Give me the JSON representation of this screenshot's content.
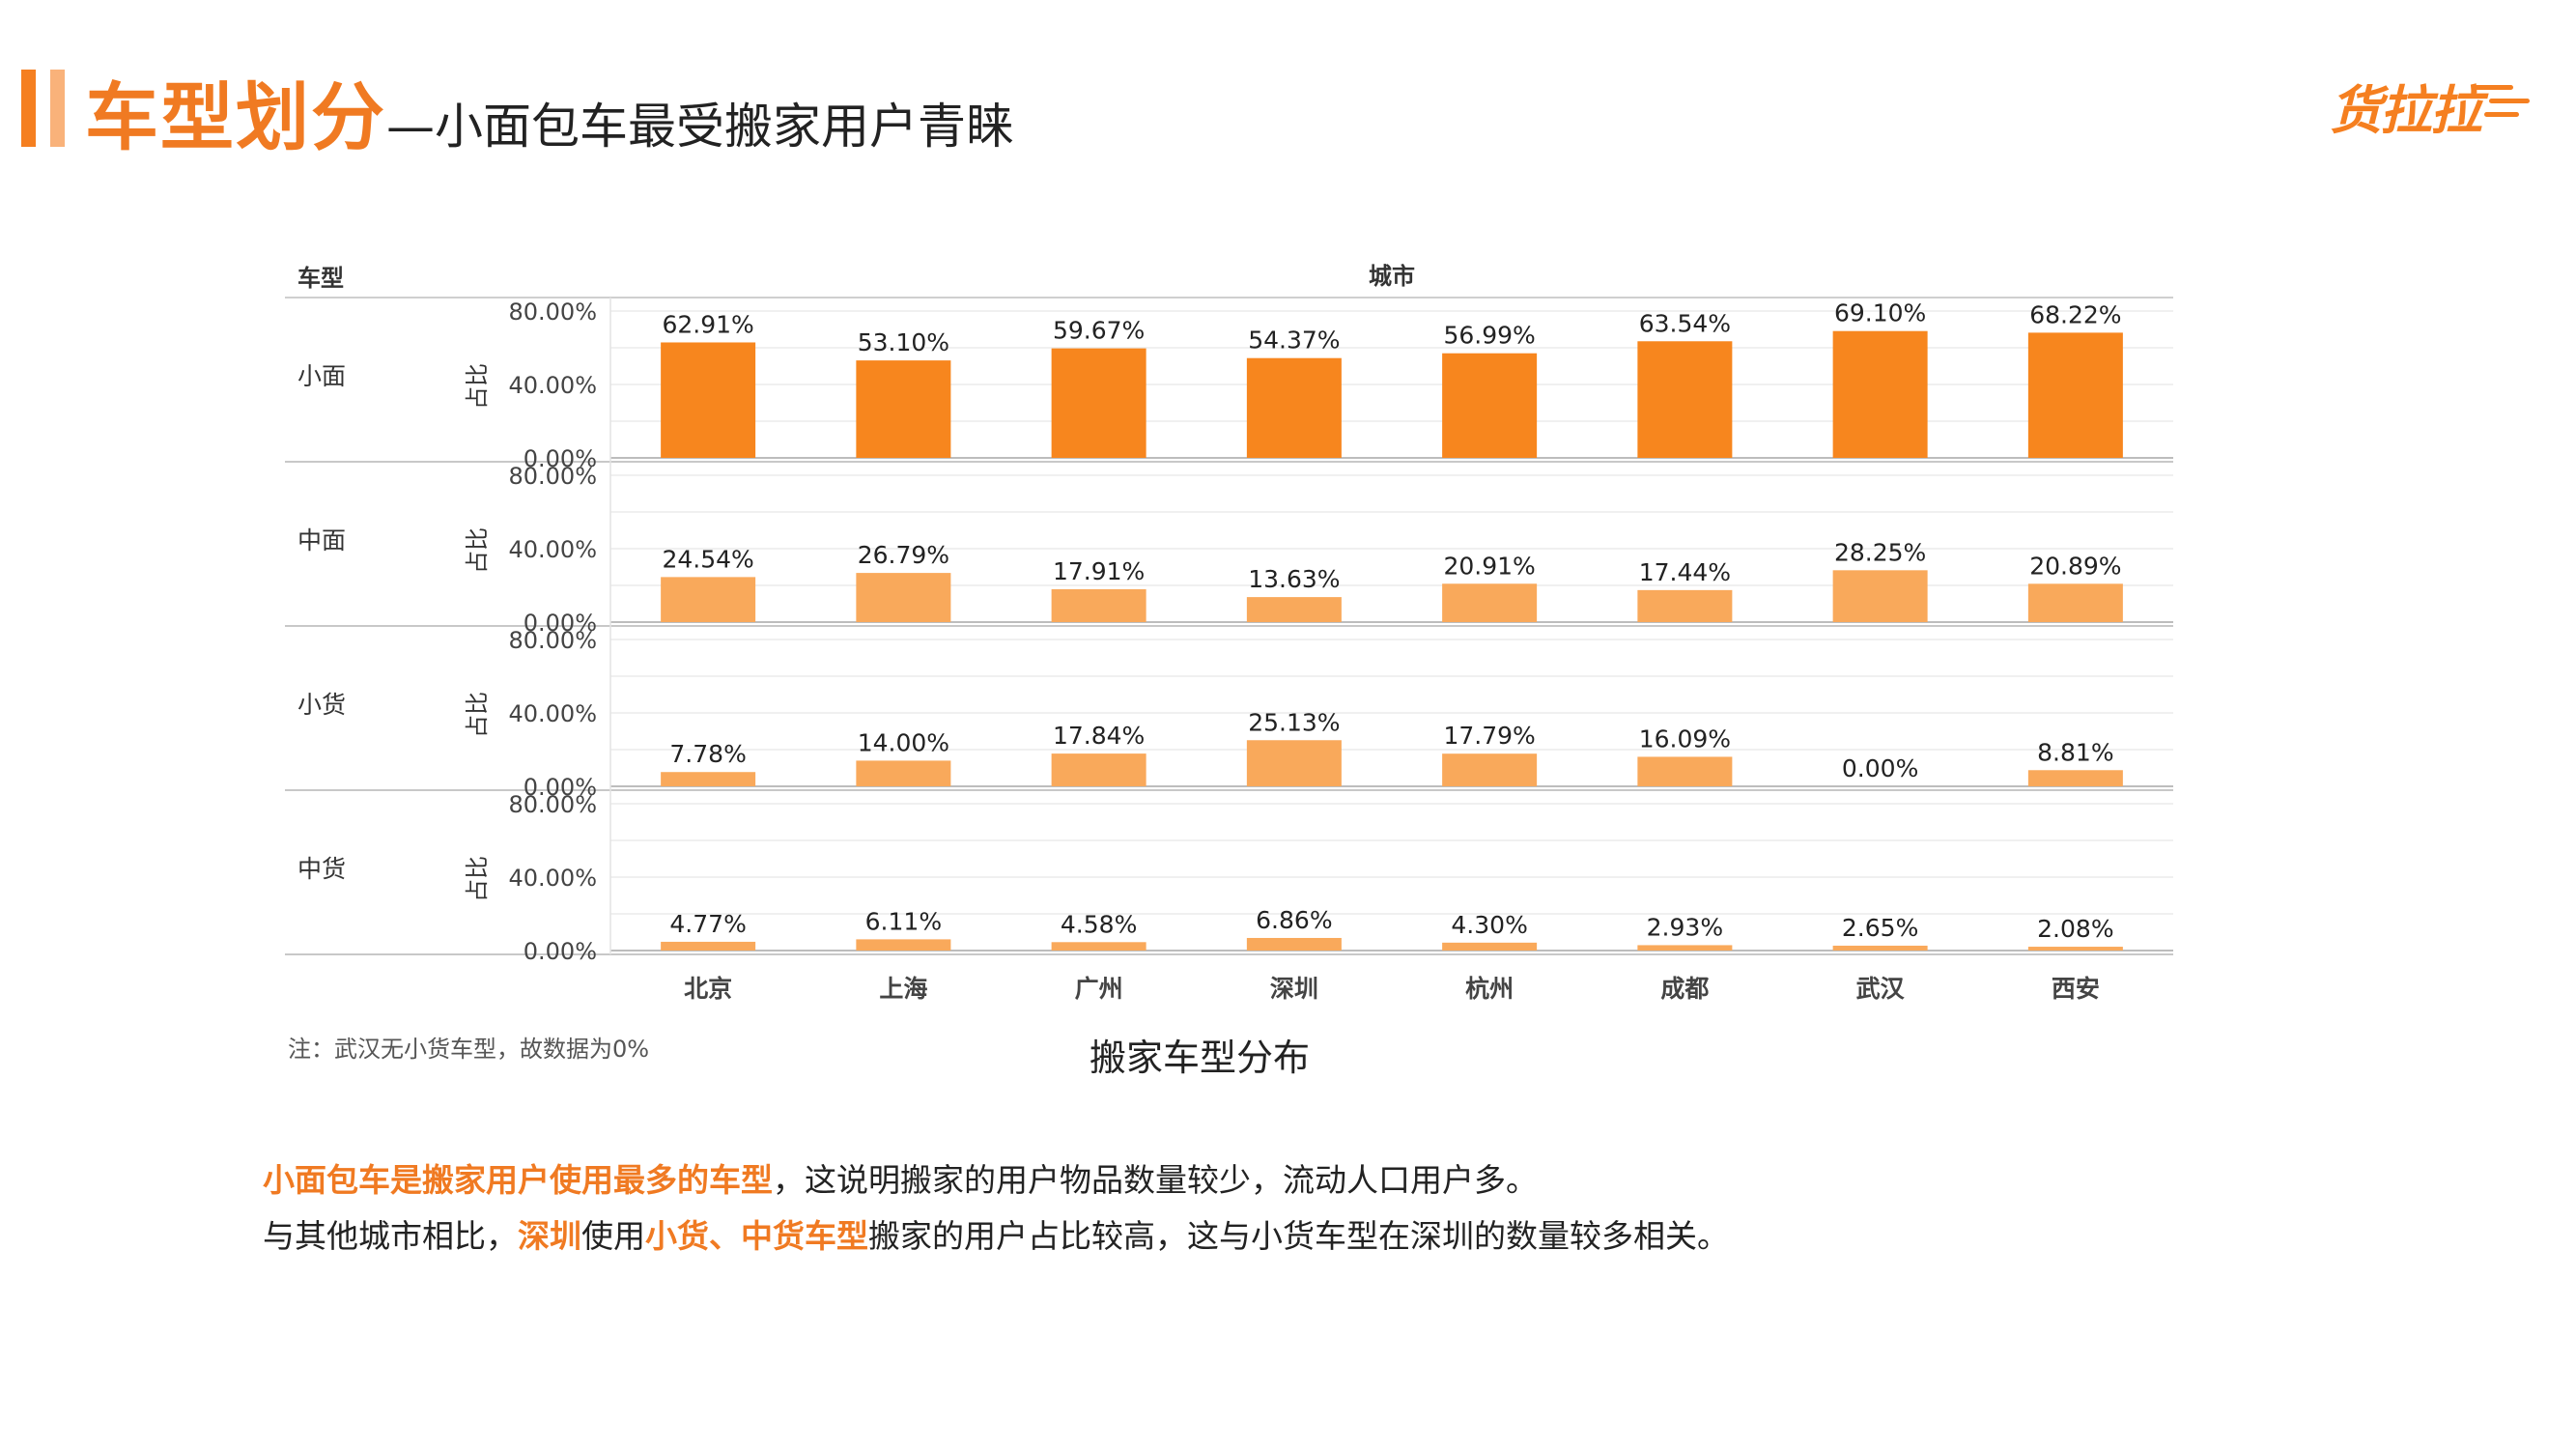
{
  "header": {
    "title_main": "车型划分",
    "title_sub": "—小面包车最受搬家用户青睐",
    "logo_text": "货拉拉"
  },
  "chart_data": {
    "type": "bar",
    "title": "搬家车型分布",
    "row_header": "车型",
    "column_header": "城市",
    "ylabel": "占比",
    "ylim": [
      0,
      80
    ],
    "y_ticks": [
      "80.00%",
      "40.00%",
      "0.00%"
    ],
    "grid": true,
    "categories": [
      "北京",
      "上海",
      "广州",
      "深圳",
      "杭州",
      "成都",
      "武汉",
      "西安"
    ],
    "series": [
      {
        "name": "小面",
        "color": "#f7861e",
        "values": [
          62.91,
          53.1,
          59.67,
          54.37,
          56.99,
          63.54,
          69.1,
          68.22
        ],
        "labels": [
          "62.91%",
          "53.10%",
          "59.67%",
          "54.37%",
          "56.99%",
          "63.54%",
          "69.10%",
          "68.22%"
        ]
      },
      {
        "name": "中面",
        "color": "#f9a95b",
        "values": [
          24.54,
          26.79,
          17.91,
          13.63,
          20.91,
          17.44,
          28.25,
          20.89
        ],
        "labels": [
          "24.54%",
          "26.79%",
          "17.91%",
          "13.63%",
          "20.91%",
          "17.44%",
          "28.25%",
          "20.89%"
        ]
      },
      {
        "name": "小货",
        "color": "#f9a95b",
        "values": [
          7.78,
          14.0,
          17.84,
          25.13,
          17.79,
          16.09,
          0.0,
          8.81
        ],
        "labels": [
          "7.78%",
          "14.00%",
          "17.84%",
          "25.13%",
          "17.79%",
          "16.09%",
          "0.00%",
          "8.81%"
        ]
      },
      {
        "name": "中货",
        "color": "#f9a95b",
        "values": [
          4.77,
          6.11,
          4.58,
          6.86,
          4.3,
          2.93,
          2.65,
          2.08
        ],
        "labels": [
          "4.77%",
          "6.11%",
          "4.58%",
          "6.86%",
          "4.30%",
          "2.93%",
          "2.65%",
          "2.08%"
        ]
      }
    ]
  },
  "note": "注：武汉无小货车型，故数据为0%",
  "summary": {
    "line1_hl": "小面包车是搬家用户使用最多的车型",
    "line1_rest": "，这说明搬家的用户物品数量较少，流动人口用户多。",
    "line2_a": "与其他城市相比，",
    "line2_hl1": "深圳",
    "line2_b": "使用",
    "line2_hl2": "小货、中货车型",
    "line2_c": "搬家的用户占比较高，这与小货车型在深圳的数量较多相关。"
  },
  "colors": {
    "accent": "#f07a22",
    "bar_primary": "#f7861e",
    "bar_secondary": "#f9a95b"
  }
}
